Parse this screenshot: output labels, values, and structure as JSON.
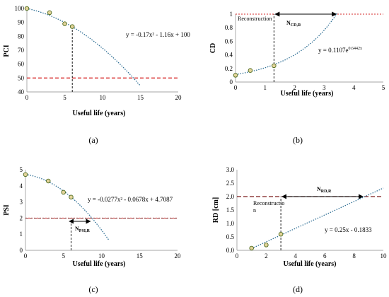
{
  "chart_data": [
    {
      "id": "a",
      "type": "scatter",
      "panel_label": "(a)",
      "xlabel": "Useful life (years)",
      "ylabel": "PCI",
      "xlim": [
        0,
        20
      ],
      "ylim": [
        40,
        100
      ],
      "xticks": [
        "0",
        "5",
        "10",
        "15",
        "20"
      ],
      "yticks": [
        "40",
        "50",
        "60",
        "70",
        "80",
        "90",
        "100"
      ],
      "points": {
        "x": [
          0,
          3,
          5,
          6
        ],
        "y": [
          100,
          97,
          89,
          87
        ]
      },
      "trend": {
        "type": "poly2",
        "a": -0.17,
        "b": -1.16,
        "c": 100,
        "x_range": [
          0,
          15
        ]
      },
      "equation": "y = -0.17x² - 1.16x + 100",
      "threshold": 50,
      "marker_x": 6
    },
    {
      "id": "b",
      "type": "scatter",
      "panel_label": "(b)",
      "xlabel": "Useful life (years)",
      "ylabel": "CD",
      "xlim": [
        0,
        5
      ],
      "ylim": [
        0,
        1
      ],
      "xticks": [
        "0",
        "1",
        "2",
        "3",
        "4",
        "5"
      ],
      "yticks": [
        "0",
        "0.2",
        "0.4",
        "0.6",
        "0.8",
        "1"
      ],
      "points": {
        "x": [
          0,
          0.5,
          1.3
        ],
        "y": [
          0.1,
          0.17,
          0.24
        ]
      },
      "trend": {
        "type": "exp",
        "a": 0.1107,
        "b": 0.6442,
        "x_range": [
          0,
          3.45
        ]
      },
      "equation_base": "y = 0.1107e",
      "equation_exp": "0.6442x",
      "threshold": 1.0,
      "marker_x": 1.3,
      "arrow": {
        "from": 1.3,
        "to": 3.45
      },
      "arrow_label_main": "N",
      "arrow_label_sub": "CD,R",
      "annotation": "Reconstruction"
    },
    {
      "id": "c",
      "type": "scatter",
      "panel_label": "(c)",
      "xlabel": "Useful life (years)",
      "ylabel": "PSI",
      "xlim": [
        0,
        20
      ],
      "ylim": [
        0,
        5
      ],
      "xticks": [
        "0",
        "5",
        "10",
        "15",
        "20"
      ],
      "yticks": [
        "0",
        "1",
        "2",
        "3",
        "4",
        "5"
      ],
      "points": {
        "x": [
          0,
          3,
          5,
          6
        ],
        "y": [
          4.7,
          4.3,
          3.6,
          3.3
        ]
      },
      "trend": {
        "type": "poly2",
        "a": -0.0277,
        "b": -0.0678,
        "c": 4.7087,
        "x_range": [
          0,
          11
        ]
      },
      "equation": "y = -0.0277x² - 0.0678x + 4.7087",
      "threshold": 2.0,
      "marker_x": 6,
      "arrow": {
        "from": 5.6,
        "to": 8.7,
        "at_y": 1.8
      },
      "arrow_label_main": "N",
      "arrow_label_sub": "PSI,R"
    },
    {
      "id": "d",
      "type": "scatter",
      "panel_label": "(d)",
      "xlabel": "Useful life (years)",
      "ylabel": "RD [cm]",
      "xlim": [
        0,
        10
      ],
      "ylim": [
        0,
        3
      ],
      "xticks": [
        "0",
        "2",
        "4",
        "6",
        "8",
        "10"
      ],
      "yticks": [
        "0.0",
        "0.5",
        "1.0",
        "1.5",
        "2.0",
        "2.5",
        "3.0"
      ],
      "points": {
        "x": [
          1,
          2,
          3
        ],
        "y": [
          0.08,
          0.2,
          0.6
        ]
      },
      "trend": {
        "type": "linear",
        "a": 0.25,
        "b": -0.1833,
        "x_range": [
          1,
          10
        ]
      },
      "equation": "y = 0.25x - 0.1833",
      "threshold": 2.0,
      "marker_x": 3,
      "arrow": {
        "from": 3,
        "to": 8.7
      },
      "arrow_label_main": "N",
      "arrow_label_sub": "RD,R",
      "annotation_lines": [
        "Reconstructio",
        "n"
      ]
    }
  ]
}
